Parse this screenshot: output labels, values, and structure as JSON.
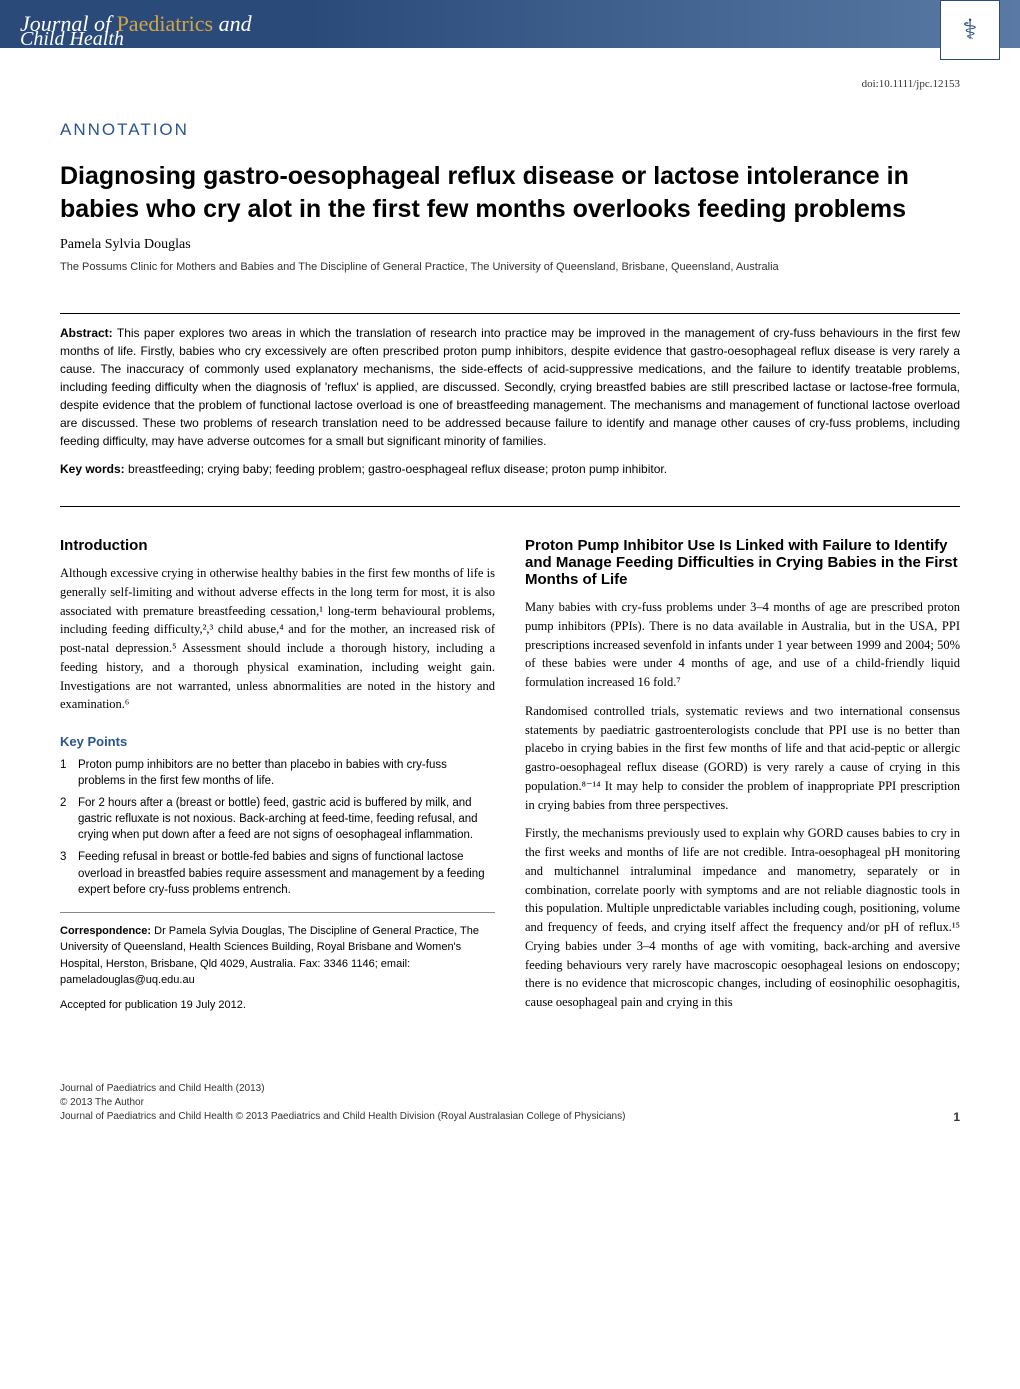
{
  "journal": {
    "name_part1": "Journal of",
    "name_highlight": "Paediatrics",
    "name_part2": "and",
    "subtitle": "Child Health"
  },
  "doi": "doi:10.1111/jpc.12153",
  "annotation_label": "ANNOTATION",
  "article_title": "Diagnosing gastro-oesophageal reflux disease or lactose intolerance in babies who cry alot in the first few months overlooks feeding problems",
  "author": "Pamela Sylvia Douglas",
  "affiliation": "The Possums Clinic for Mothers and Babies and The Discipline of General Practice, The University of Queensland, Brisbane, Queensland, Australia",
  "abstract": {
    "label": "Abstract:",
    "text": "This paper explores two areas in which the translation of research into practice may be improved in the management of cry-fuss behaviours in the first few months of life. Firstly, babies who cry excessively are often prescribed proton pump inhibitors, despite evidence that gastro-oesophageal reflux disease is very rarely a cause. The inaccuracy of commonly used explanatory mechanisms, the side-effects of acid-suppressive medications, and the failure to identify treatable problems, including feeding difficulty when the diagnosis of 'reflux' is applied, are discussed. Secondly, crying breastfed babies are still prescribed lactase or lactose-free formula, despite evidence that the problem of functional lactose overload is one of breastfeeding management. The mechanisms and management of functional lactose overload are discussed. These two problems of research translation need to be addressed because failure to identify and manage other causes of cry-fuss problems, including feeding difficulty, may have adverse outcomes for a small but significant minority of families."
  },
  "keywords": {
    "label": "Key words:",
    "text": "breastfeeding; crying baby; feeding problem; gastro-oesphageal reflux disease; proton pump inhibitor."
  },
  "introduction": {
    "heading": "Introduction",
    "text": "Although excessive crying in otherwise healthy babies in the first few months of life is generally self-limiting and without adverse effects in the long term for most, it is also associated with premature breastfeeding cessation,¹ long-term behavioural problems, including feeding difficulty,²,³ child abuse,⁴ and for the mother, an increased risk of post-natal depression.⁵ Assessment should include a thorough history, including a feeding history, and a thorough physical examination, including weight gain. Investigations are not warranted, unless abnormalities are noted in the history and examination.⁶"
  },
  "key_points": {
    "heading": "Key Points",
    "items": [
      "Proton pump inhibitors are no better than placebo in babies with cry-fuss problems in the first few months of life.",
      "For 2 hours after a (breast or bottle) feed, gastric acid is buffered by milk, and gastric refluxate is not noxious. Back-arching at feed-time, feeding refusal, and crying when put down after a feed are not signs of oesophageal inflammation.",
      "Feeding refusal in breast or bottle-fed babies and signs of functional lactose overload in breastfed babies require assessment and management by a feeding expert before cry-fuss problems entrench."
    ]
  },
  "correspondence": {
    "label": "Correspondence:",
    "text": "Dr Pamela Sylvia Douglas, The Discipline of General Practice, The University of Queensland, Health Sciences Building, Royal Brisbane and Women's Hospital, Herston, Brisbane, Qld 4029, Australia. Fax: 3346 1146; email: pameladouglas@uq.edu.au"
  },
  "accepted_date": "Accepted for publication 19 July 2012.",
  "section2": {
    "heading": "Proton Pump Inhibitor Use Is Linked with Failure to Identify and Manage Feeding Difficulties in Crying Babies in the First Months of Life",
    "paragraphs": [
      "Many babies with cry-fuss problems under 3–4 months of age are prescribed proton pump inhibitors (PPIs). There is no data available in Australia, but in the USA, PPI prescriptions increased sevenfold in infants under 1 year between 1999 and 2004; 50% of these babies were under 4 months of age, and use of a child-friendly liquid formulation increased 16 fold.⁷",
      "Randomised controlled trials, systematic reviews and two international consensus statements by paediatric gastroenterologists conclude that PPI use is no better than placebo in crying babies in the first few months of life and that acid-peptic or allergic gastro-oesophageal reflux disease (GORD) is very rarely a cause of crying in this population.⁸⁻¹⁴ It may help to consider the problem of inappropriate PPI prescription in crying babies from three perspectives.",
      "Firstly, the mechanisms previously used to explain why GORD causes babies to cry in the first weeks and months of life are not credible. Intra-oesophageal pH monitoring and multichannel intraluminal impedance and manometry, separately or in combination, correlate poorly with symptoms and are not reliable diagnostic tools in this population. Multiple unpredictable variables including cough, positioning, volume and frequency of feeds, and crying itself affect the frequency and/or pH of reflux.¹⁵ Crying babies under 3–4 months of age with vomiting, back-arching and aversive feeding behaviours very rarely have macroscopic oesophageal lesions on endoscopy; there is no evidence that microscopic changes, including of eosinophilic oesophagitis, cause oesophageal pain and crying in this"
    ]
  },
  "footer": {
    "line1": "Journal of Paediatrics and Child Health (2013)",
    "line2": "© 2013 The Author",
    "line3": "Journal of Paediatrics and Child Health © 2013 Paediatrics and Child Health Division (Royal Australasian College of Physicians)",
    "page_number": "1"
  },
  "styling": {
    "header_gradient_start": "#2a4a7a",
    "header_gradient_end": "#5a7aa5",
    "highlight_color": "#d4a545",
    "annotation_color": "#2a5590",
    "key_points_color": "#2a5590",
    "body_font": "Georgia, serif",
    "ui_font": "Arial, sans-serif",
    "title_fontsize": 25,
    "body_fontsize": 12.5,
    "abstract_fontsize": 12,
    "footer_fontsize": 10
  }
}
